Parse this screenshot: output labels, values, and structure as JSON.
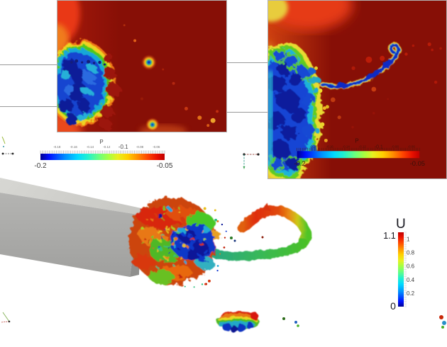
{
  "colors": {
    "field_background": "#870f06",
    "colormap": "jet",
    "beam_top": "#d4d4d0",
    "beam_side": "#a9a9a7",
    "page_background": "#ffffff"
  },
  "chart_data": [
    {
      "type": "heatmap",
      "id": "pressure-slice-left",
      "title": "P",
      "variable": "pressure",
      "colormap": "jet",
      "range": [
        -0.2,
        -0.05
      ],
      "colorbar": {
        "orientation": "horizontal",
        "min_label": "-0.2",
        "max_label": "-0.05",
        "mid_label": "-0.1",
        "tick_values": [
          "-0.18",
          "-0.16",
          "-0.14",
          "-0.12",
          "-0.1",
          "-0.08",
          "-0.06"
        ]
      },
      "features": [
        "large turbulent low-pressure blue region attached to left edge at mid height",
        "small vortex core with yellow ring at upper center",
        "small vortex core at bottom center",
        "bright red inflow band along left edge",
        "dark red far field near upper bound -0.05"
      ]
    },
    {
      "type": "heatmap",
      "id": "pressure-slice-right",
      "title": "P",
      "variable": "pressure",
      "colormap": "jet",
      "range": [
        -0.2,
        -0.05
      ],
      "colorbar": {
        "orientation": "horizontal",
        "min_label": "-0.2",
        "max_label": "-0.05",
        "mid_label": "-0.1",
        "tick_values": [
          "-0.18",
          "-0.16",
          "-0.14",
          "-0.12",
          "-0.1",
          "-0.08",
          "-0.06"
        ]
      },
      "features": [
        "large ragged low-pressure blue region along left edge spanning most of the height",
        "thin low-pressure vortex filament trailing right and curling upward",
        "scattered red pressure spots around the filament",
        "yellow-orange inflow region along left edge",
        "embedded horizontal colorbar near bottom of the view"
      ]
    },
    {
      "type": "isosurface_3d",
      "id": "velocity-isosurface",
      "title": "U",
      "variable": "velocity magnitude",
      "colormap": "jet",
      "range": [
        0,
        1.1
      ],
      "colorbar": {
        "orientation": "vertical",
        "max_label": "1.1",
        "min_label": "0",
        "tick_values": [
          "1",
          "0.8",
          "0.6",
          "0.4",
          "0.2"
        ]
      },
      "features": [
        "gray square duct in perspective entering from the left",
        "turbulent isosurface plume at the duct outlet colored by velocity",
        "hairpin vortex ring downstream to the right",
        "small detached rainbow-banded blob below",
        "orientation axes glyph at lower left"
      ]
    }
  ]
}
